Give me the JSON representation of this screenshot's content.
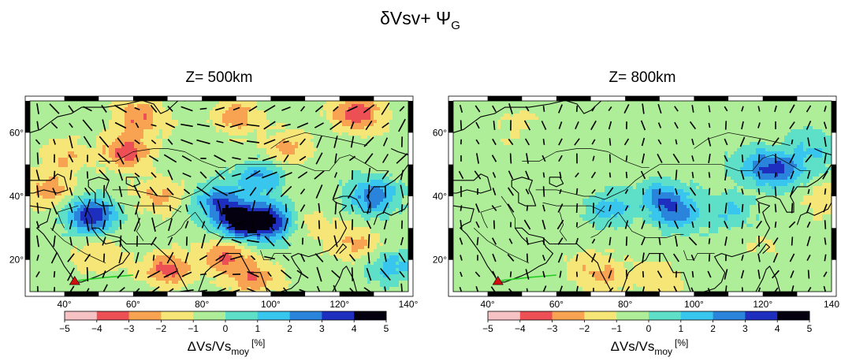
{
  "figure": {
    "title_main": "δVsv+ Ψ",
    "title_sub": "G"
  },
  "panels": [
    {
      "title": "Z= 500km"
    },
    {
      "title": "Z= 800km"
    }
  ],
  "colorbar": {
    "label_main": "ΔVs/Vs",
    "label_sub": "moy",
    "label_unit": "[%]"
  },
  "chart_data": [
    {
      "type": "heatmap",
      "title": "Z= 500km",
      "x_range": [
        30,
        140
      ],
      "y_range": [
        10,
        70
      ],
      "x_ticks": [
        40,
        60,
        80,
        100,
        120,
        140
      ],
      "x_tick_labels": [
        "40°",
        "60°",
        "80°",
        "100°",
        "120°",
        "140°"
      ],
      "y_ticks": [
        20,
        40,
        60
      ],
      "y_tick_labels": [
        "20°",
        "40°",
        "60°"
      ],
      "color_range": [
        -5,
        5
      ],
      "color_ticks": [
        -5,
        -4,
        -3,
        -2,
        -1,
        0,
        1,
        2,
        3,
        4,
        5
      ],
      "colorbar_label": "ΔVs/Vs moy [%]",
      "anomalies": [
        {
          "lon": 62,
          "lat": 65,
          "value": -2.5
        },
        {
          "lon": 90,
          "lat": 65,
          "value": -2.2
        },
        {
          "lon": 125,
          "lat": 66,
          "value": -3.2
        },
        {
          "lon": 58,
          "lat": 54,
          "value": -3.0
        },
        {
          "lon": 105,
          "lat": 55,
          "value": -1.8
        },
        {
          "lon": 36,
          "lat": 42,
          "value": -2.0
        },
        {
          "lon": 68,
          "lat": 40,
          "value": -1.8
        },
        {
          "lon": 92,
          "lat": 32,
          "value": 5.0
        },
        {
          "lon": 100,
          "lat": 32,
          "value": 4.2
        },
        {
          "lon": 85,
          "lat": 38,
          "value": 3.2
        },
        {
          "lon": 48,
          "lat": 34,
          "value": 4.5
        },
        {
          "lon": 97,
          "lat": 46,
          "value": 2.6
        },
        {
          "lon": 130,
          "lat": 40,
          "value": 3.4
        },
        {
          "lon": 125,
          "lat": 25,
          "value": -1.8
        },
        {
          "lon": 70,
          "lat": 17,
          "value": -2.8
        },
        {
          "lon": 87,
          "lat": 21,
          "value": -2.6
        },
        {
          "lon": 95,
          "lat": 14,
          "value": -2.2
        },
        {
          "lon": 50,
          "lat": 22,
          "value": -1.5
        },
        {
          "lon": 112,
          "lat": 31,
          "value": -1.2
        },
        {
          "lon": 135,
          "lat": 18,
          "value": 2.0
        },
        {
          "lon": 40,
          "lat": 52,
          "value": -1.5
        }
      ]
    },
    {
      "type": "heatmap",
      "title": "Z= 800km",
      "x_range": [
        30,
        140
      ],
      "y_range": [
        10,
        70
      ],
      "x_ticks": [
        40,
        60,
        80,
        100,
        120,
        140
      ],
      "x_tick_labels": [
        "40°",
        "60°",
        "80°",
        "100°",
        "120°",
        "140"
      ],
      "y_ticks": [
        20,
        40,
        60
      ],
      "y_tick_labels": [
        "20°",
        "40°",
        "60°"
      ],
      "color_range": [
        -5,
        5
      ],
      "color_ticks": [
        -5,
        -4,
        -3,
        -2,
        -1,
        0,
        1,
        2,
        3,
        4,
        5
      ],
      "colorbar_label": "ΔVs/Vs moy [%]",
      "anomalies": [
        {
          "lon": 50,
          "lat": 62,
          "value": -0.7
        },
        {
          "lon": 90,
          "lat": 40,
          "value": 2.4
        },
        {
          "lon": 95,
          "lat": 35,
          "value": 2.8
        },
        {
          "lon": 75,
          "lat": 36,
          "value": 1.8
        },
        {
          "lon": 110,
          "lat": 35,
          "value": 1.7
        },
        {
          "lon": 118,
          "lat": 50,
          "value": 2.0
        },
        {
          "lon": 125,
          "lat": 48,
          "value": 3.0
        },
        {
          "lon": 135,
          "lat": 55,
          "value": 1.6
        },
        {
          "lon": 75,
          "lat": 15,
          "value": -1.3
        },
        {
          "lon": 90,
          "lat": 13,
          "value": -1.2
        },
        {
          "lon": 68,
          "lat": 18,
          "value": -1.0
        },
        {
          "lon": 118,
          "lat": 24,
          "value": -0.5
        },
        {
          "lon": 38,
          "lat": 52,
          "value": -0.3
        },
        {
          "lon": 138,
          "lat": 38,
          "value": -1.2
        }
      ]
    }
  ]
}
